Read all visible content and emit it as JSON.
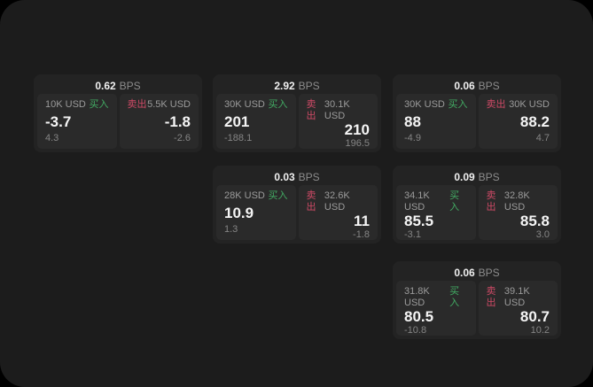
{
  "app": {
    "labels": {
      "bps_unit": "BPS",
      "buy": "买入",
      "sell": "卖出"
    },
    "colors": {
      "outer_background": "#000000",
      "panel_background": "#1c1c1c",
      "card_background": "#232323",
      "tile_background": "#2a2a2a",
      "buy_accent": "#42ab63",
      "sell_accent": "#cf4a66",
      "primary_text": "#f5f5f5",
      "muted_text": "#8c8c8c"
    }
  },
  "cards": [
    {
      "bps": "0.62",
      "col": 1,
      "row": 1,
      "buy": {
        "notional": "10K USD",
        "price": "-3.7",
        "delta": "4.3"
      },
      "sell": {
        "notional": "5.5K USD",
        "price": "-1.8",
        "delta": "-2.6"
      }
    },
    {
      "bps": "2.92",
      "col": 2,
      "row": 1,
      "buy": {
        "notional": "30K USD",
        "price": "201",
        "delta": "-188.1"
      },
      "sell": {
        "notional": "30.1K USD",
        "price": "210",
        "delta": "196.5"
      }
    },
    {
      "bps": "0.06",
      "col": 3,
      "row": 1,
      "buy": {
        "notional": "30K USD",
        "price": "88",
        "delta": "-4.9"
      },
      "sell": {
        "notional": "30K USD",
        "price": "88.2",
        "delta": "4.7"
      }
    },
    {
      "bps": "0.03",
      "col": 2,
      "row": 2,
      "buy": {
        "notional": "28K USD",
        "price": "10.9",
        "delta": "1.3"
      },
      "sell": {
        "notional": "32.6K USD",
        "price": "11",
        "delta": "-1.8"
      }
    },
    {
      "bps": "0.09",
      "col": 3,
      "row": 2,
      "buy": {
        "notional": "34.1K USD",
        "price": "85.5",
        "delta": "-3.1"
      },
      "sell": {
        "notional": "32.8K USD",
        "price": "85.8",
        "delta": "3.0"
      }
    },
    {
      "bps": "0.06",
      "col": 3,
      "row": 3,
      "buy": {
        "notional": "31.8K USD",
        "price": "80.5",
        "delta": "-10.8"
      },
      "sell": {
        "notional": "39.1K USD",
        "price": "80.7",
        "delta": "10.2"
      }
    }
  ]
}
